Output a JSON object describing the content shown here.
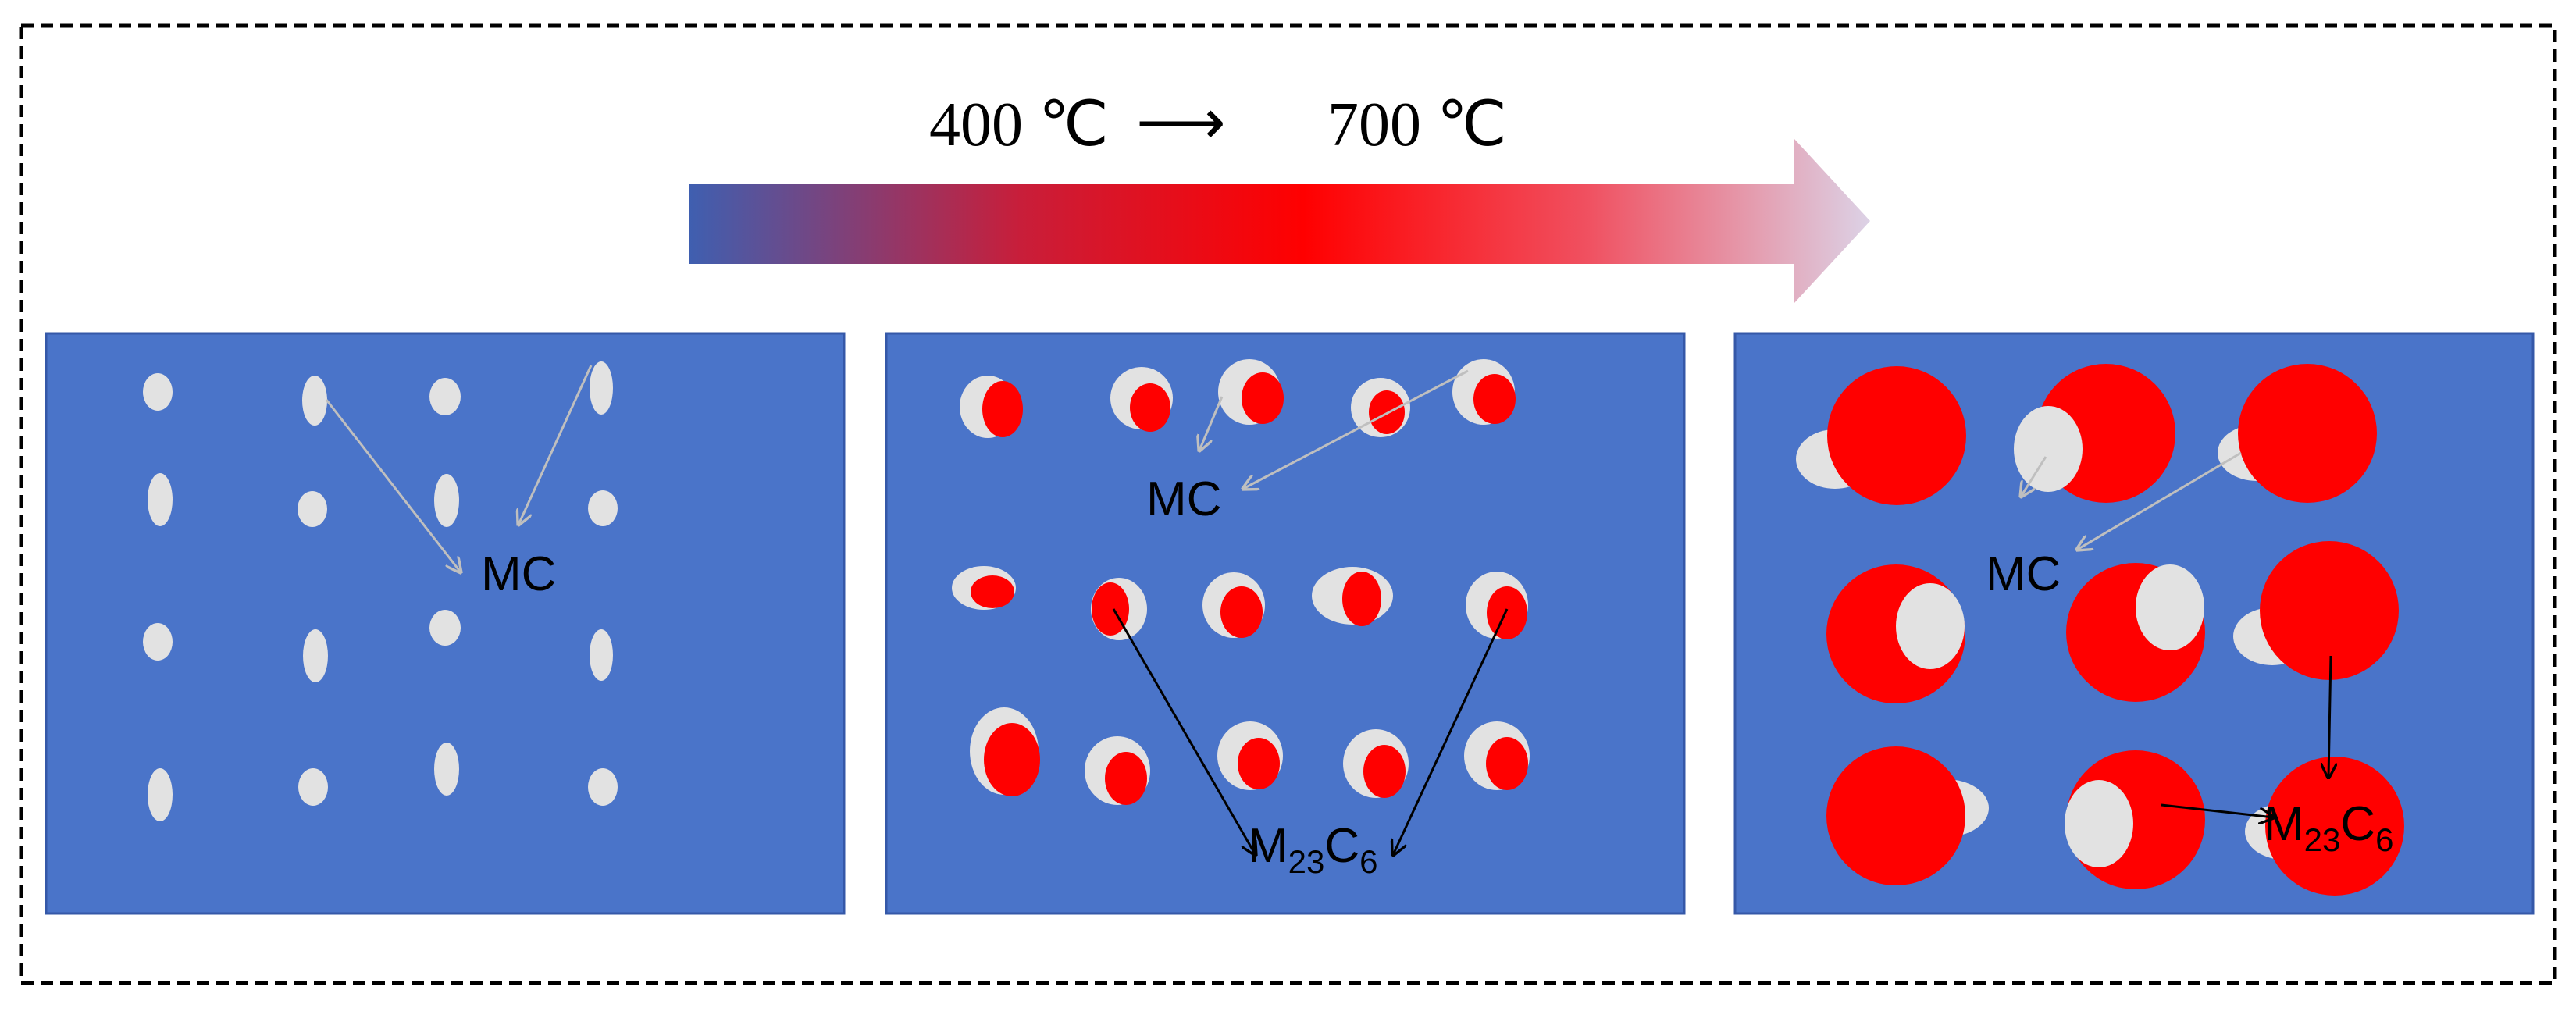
{
  "temperature_arrow": {
    "start_label": "400 ℃",
    "end_label": "700 ℃",
    "connector": "⟶",
    "gradient_colors": [
      "#3f5fb0",
      "#c81e3a",
      "#ff0000",
      "#f05060",
      "#dcd2e6"
    ]
  },
  "colors": {
    "panel_fill": "#4a74c9",
    "panel_stroke": "#3558a8",
    "mc_particle": "#e2e2e2",
    "m23c6_particle": "#ff0000",
    "mc_pointer": "#bfbfbf",
    "m23c6_pointer": "#000000",
    "label_text": "#000000",
    "frame_border": "#000000"
  },
  "panels": [
    {
      "stage": "400 ℃",
      "labels": {
        "mc": "MC"
      }
    },
    {
      "stage": "intermediate",
      "labels": {
        "mc": "MC",
        "m23c6_base": "M",
        "m23c6_sub1": "23",
        "m23c6_mid": "C",
        "m23c6_sub2": "6"
      }
    },
    {
      "stage": "700 ℃",
      "labels": {
        "mc": "MC",
        "m23c6_base": "M",
        "m23c6_sub1": "23",
        "m23c6_mid": "C",
        "m23c6_sub2": "6"
      }
    }
  ],
  "icons": [
    "dashed-frame",
    "gradient-arrow-icon",
    "pointer-arrow-icon"
  ]
}
